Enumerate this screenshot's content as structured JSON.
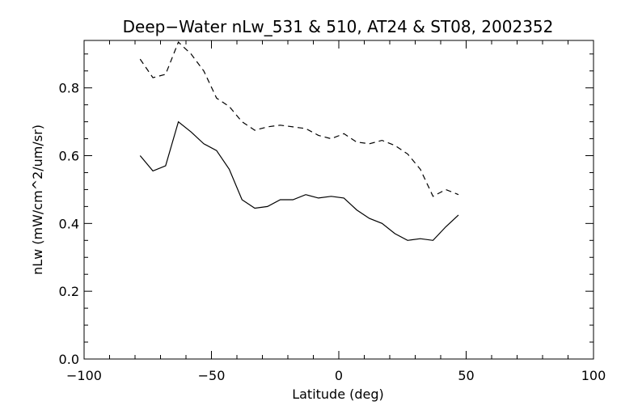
{
  "chart_data": {
    "type": "line",
    "title": "Deep−Water nLw_531 & 510, AT24 & ST08, 2002352",
    "xlabel": "Latitude (deg)",
    "ylabel": "nLw (mW/cm^2/um/sr)",
    "xlim": [
      -100,
      100
    ],
    "ylim": [
      0.0,
      0.94
    ],
    "x_ticks": [
      -100,
      -50,
      0,
      50,
      100
    ],
    "x_tick_labels": [
      "−100",
      "−50",
      "0",
      "50",
      "100"
    ],
    "x_minor_step": 10,
    "y_ticks": [
      0.0,
      0.2,
      0.4,
      0.6,
      0.8
    ],
    "y_tick_labels": [
      "0.0",
      "0.2",
      "0.4",
      "0.6",
      "0.8"
    ],
    "y_minor_step": 0.05,
    "grid": false,
    "legend": "none",
    "series": [
      {
        "style": "dashed",
        "x": [
          -78,
          -73,
          -68,
          -63,
          -58,
          -53,
          -48,
          -43,
          -38,
          -33,
          -28,
          -23,
          -18,
          -13,
          -8,
          -3,
          2,
          7,
          12,
          17,
          22,
          27,
          32,
          37,
          42,
          47
        ],
        "y": [
          0.885,
          0.83,
          0.84,
          0.935,
          0.9,
          0.85,
          0.77,
          0.745,
          0.7,
          0.675,
          0.685,
          0.69,
          0.685,
          0.68,
          0.66,
          0.65,
          0.665,
          0.64,
          0.635,
          0.645,
          0.63,
          0.605,
          0.56,
          0.48,
          0.5,
          0.485
        ]
      },
      {
        "style": "solid",
        "x": [
          -78,
          -73,
          -68,
          -63,
          -58,
          -53,
          -48,
          -43,
          -38,
          -33,
          -28,
          -23,
          -18,
          -13,
          -8,
          -3,
          2,
          7,
          12,
          17,
          22,
          27,
          32,
          37,
          42,
          47
        ],
        "y": [
          0.6,
          0.555,
          0.57,
          0.7,
          0.67,
          0.635,
          0.615,
          0.56,
          0.47,
          0.445,
          0.45,
          0.47,
          0.47,
          0.485,
          0.475,
          0.48,
          0.475,
          0.44,
          0.415,
          0.4,
          0.37,
          0.35,
          0.355,
          0.35,
          0.39,
          0.425
        ]
      }
    ]
  }
}
